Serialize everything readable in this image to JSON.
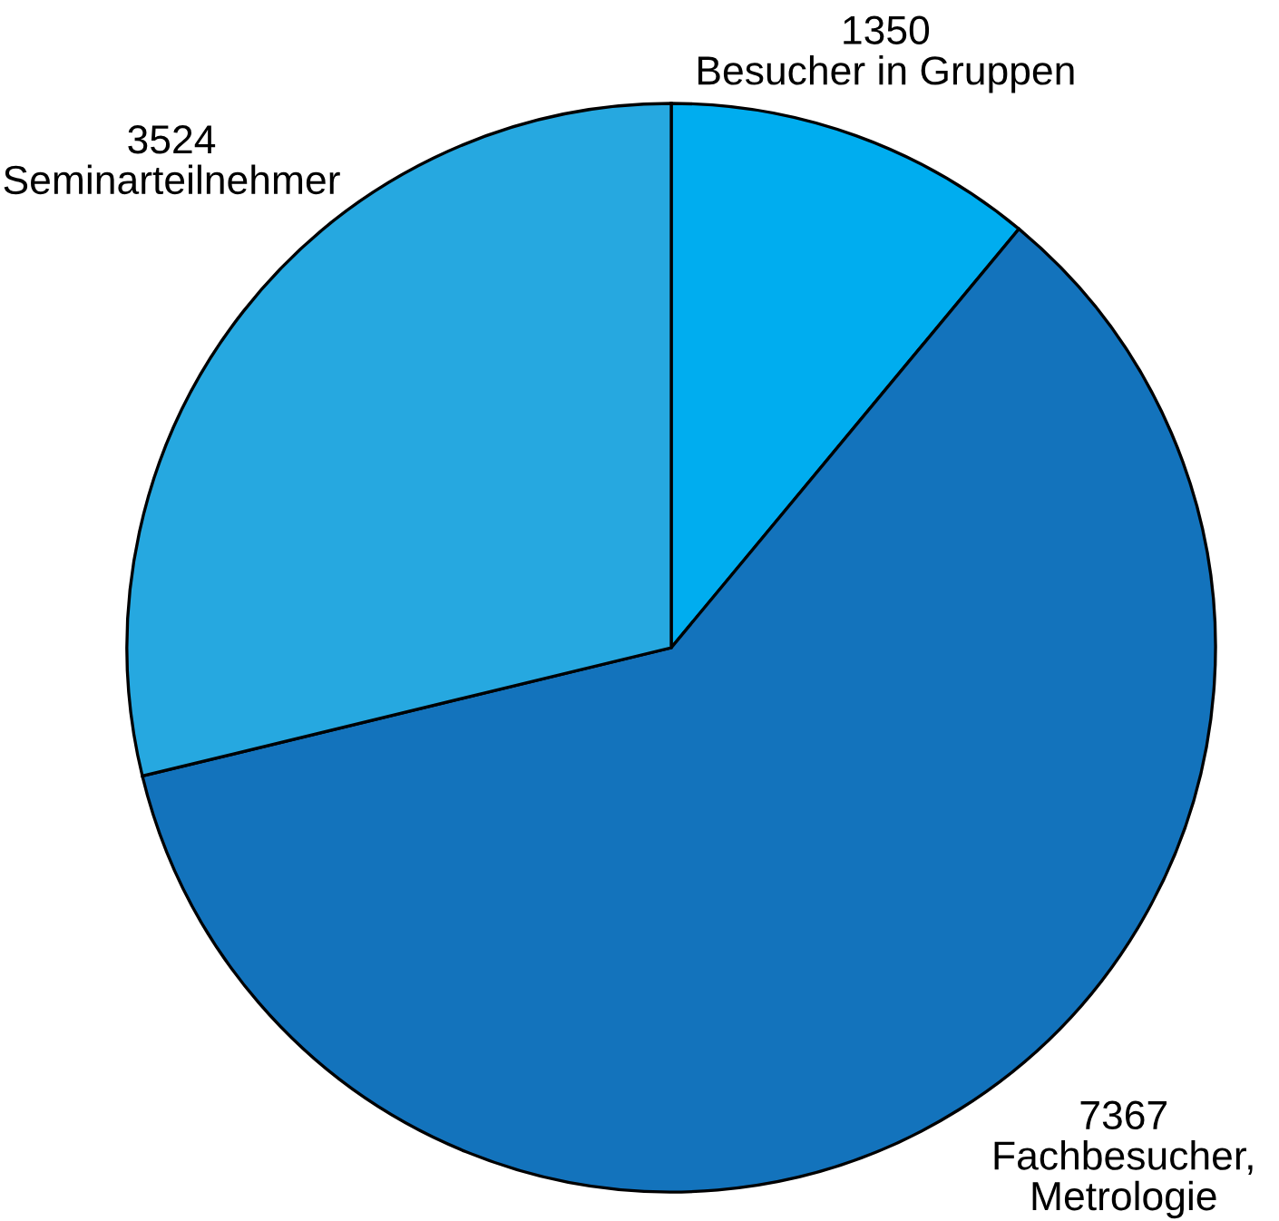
{
  "chart_data": {
    "type": "pie",
    "categories": [
      "Besucher in Gruppen",
      "Fachbesucher,\nMetrologie",
      "Seminarteilnehmer"
    ],
    "values": [
      1350,
      7367,
      3524
    ],
    "colors": [
      "#00adef",
      "#1373bc",
      "#26a8e0"
    ],
    "data_labels": true
  }
}
